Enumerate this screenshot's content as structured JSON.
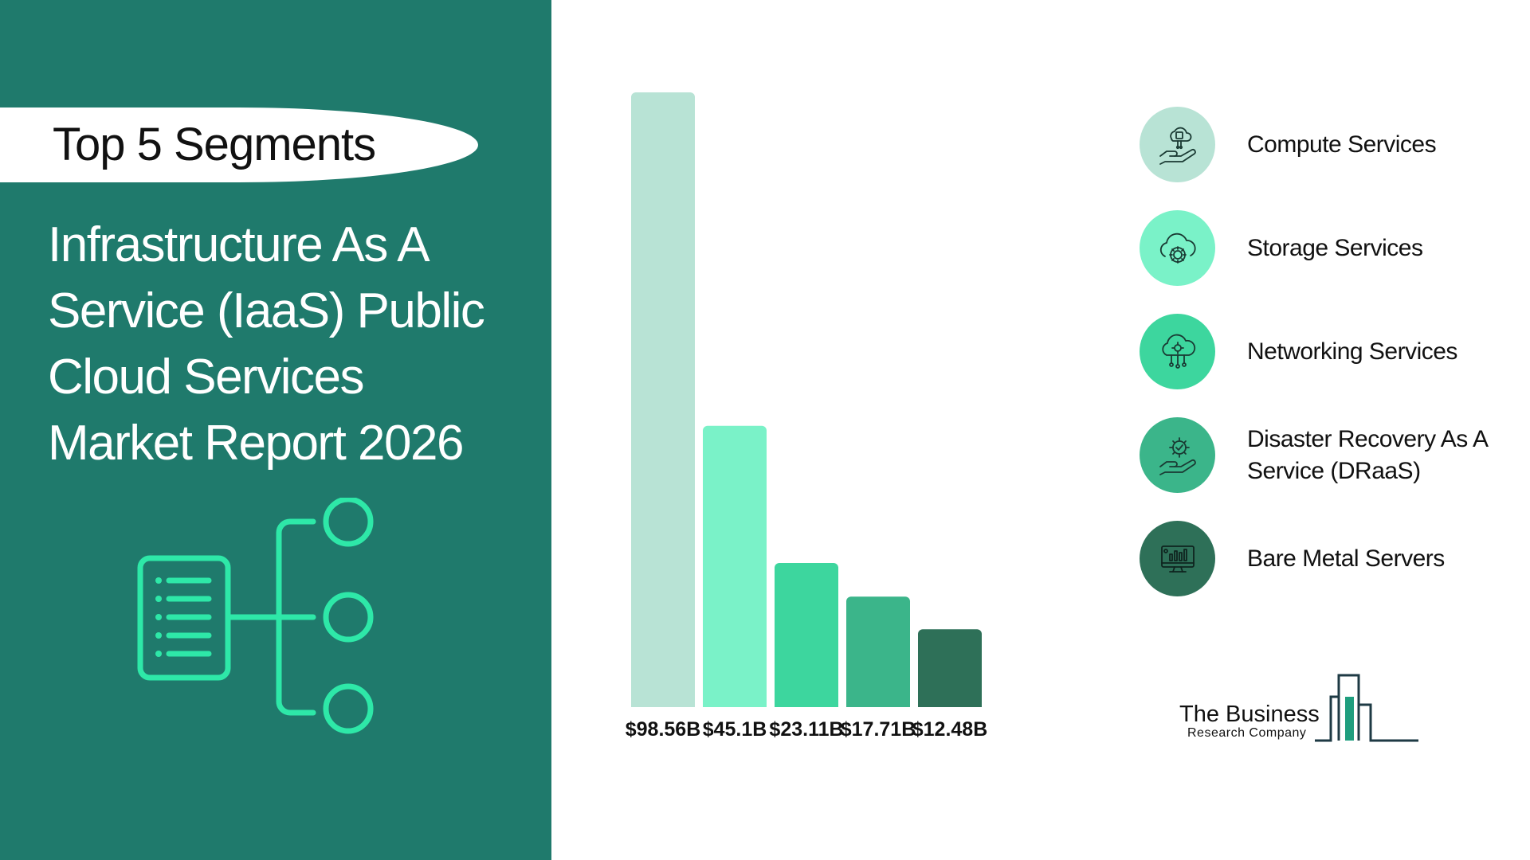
{
  "header": {
    "pill_label": "Top 5 Segments",
    "report_title_lines": [
      "Infrastructure As A",
      "Service (IaaS) Public",
      "Cloud Services",
      "Market Report 2026"
    ]
  },
  "icons": {
    "tree": "document-tree-icon",
    "segments": [
      "hand-chip-cloud-icon",
      "cloud-gear-icon",
      "cloud-network-icon",
      "hand-gear-check-icon",
      "monitor-chart-icon"
    ]
  },
  "colors": {
    "panel": "#1f7a6c",
    "accent": "#2ee8a8",
    "bars": [
      "#b8e3d5",
      "#7af2c8",
      "#3dd69e",
      "#3bb58a",
      "#2e7058"
    ],
    "legend_icon_fill": [
      "#b8e3d5",
      "#7af2c8",
      "#3dd69e",
      "#3bb58a",
      "#2e7058"
    ]
  },
  "chart_data": {
    "type": "bar",
    "categories": [
      "Compute Services",
      "Storage Services",
      "Networking Services",
      "Disaster Recovery As A Service (DRaaS)",
      "Bare Metal Servers"
    ],
    "values": [
      98.56,
      45.1,
      23.11,
      17.71,
      12.48
    ],
    "value_labels": [
      "$98.56B",
      "$45.1B",
      "$23.11B",
      "$17.71B",
      "$12.48B"
    ],
    "unit": "$B",
    "ylim": [
      0,
      98.56
    ],
    "grid": false,
    "legend": "right",
    "title": "",
    "xlabel": "",
    "ylabel": ""
  },
  "legend": {
    "items": [
      {
        "label": "Compute Services"
      },
      {
        "label": "Storage Services"
      },
      {
        "label": "Networking Services"
      },
      {
        "label": "Disaster Recovery As A Service (DRaaS)"
      },
      {
        "label": "Bare Metal Servers"
      }
    ]
  },
  "logo": {
    "line1": "The Business",
    "line2": "Research Company"
  }
}
